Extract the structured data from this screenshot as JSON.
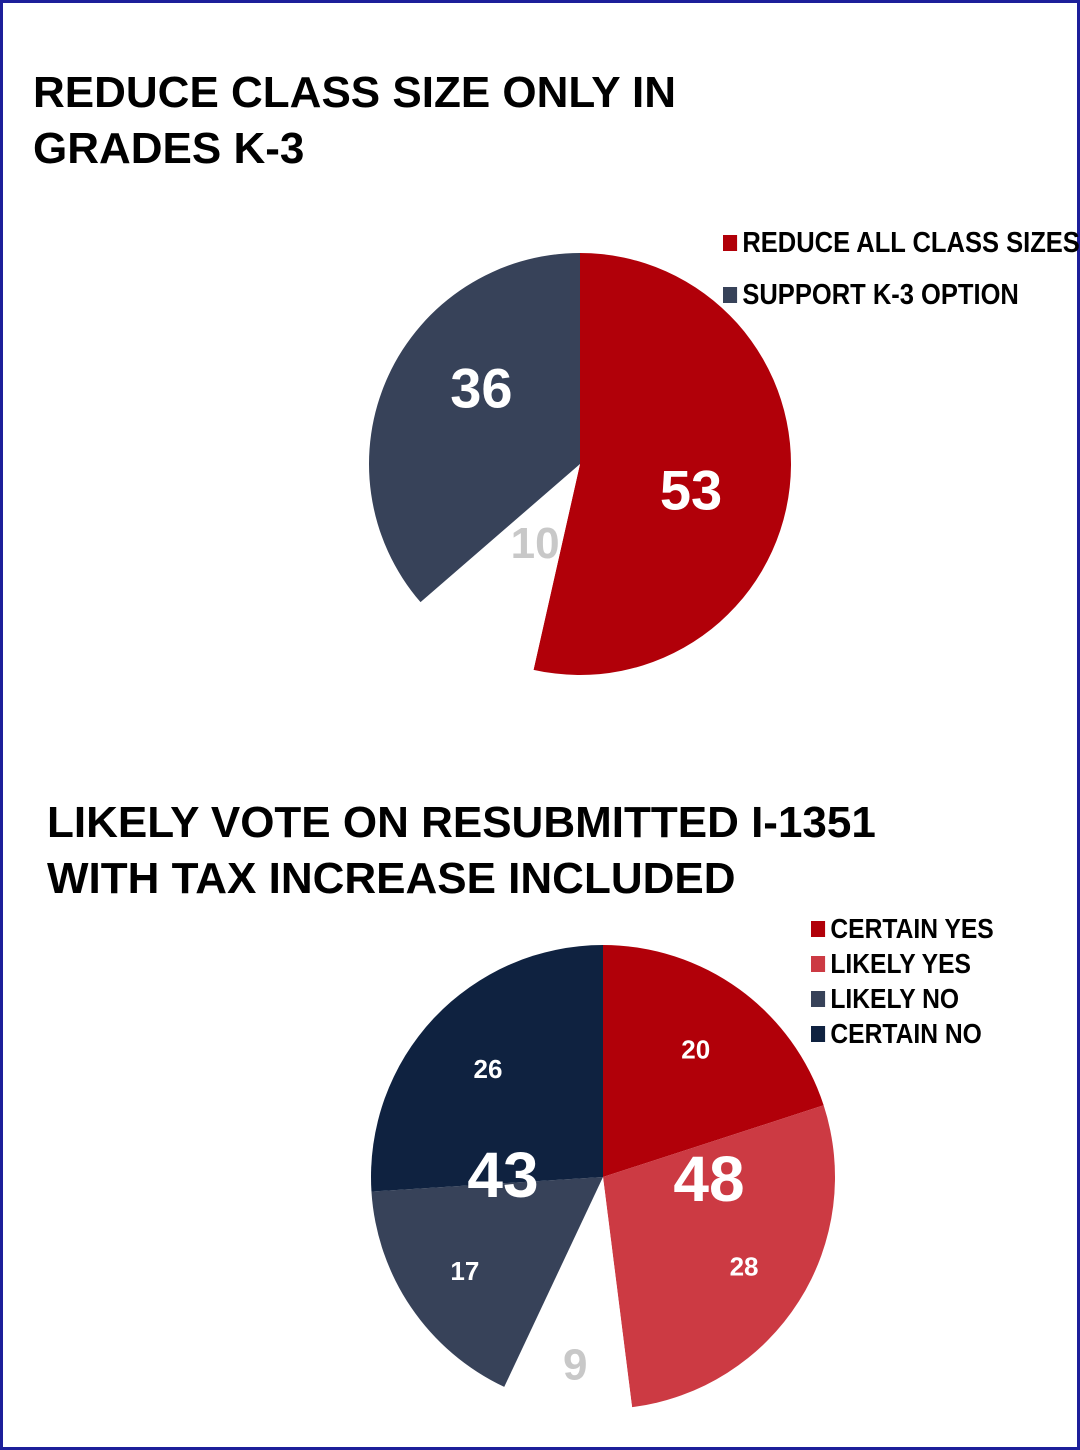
{
  "chart_data": [
    {
      "type": "pie",
      "title_lines": [
        "REDUCE CLASS SIZE ONLY IN",
        "GRADES K-3"
      ],
      "legend_position": "top-right",
      "legend": [
        {
          "label": "REDUCE ALL CLASS SIZES",
          "color": "#b10009"
        },
        {
          "label": "SUPPORT K-3 OPTION",
          "color": "#374259"
        }
      ],
      "slices": [
        {
          "value": 53,
          "color": "#b10009",
          "label": "53"
        },
        {
          "value": 10,
          "color": "#ffffff",
          "label": "10"
        },
        {
          "value": 36,
          "color": "#374259",
          "label": "36"
        }
      ]
    },
    {
      "type": "pie",
      "title_lines": [
        "LIKELY VOTE ON RESUBMITTED I-1351",
        "WITH TAX INCREASE INCLUDED"
      ],
      "legend_position": "top-right",
      "legend": [
        {
          "label": "CERTAIN YES",
          "color": "#b10009"
        },
        {
          "label": "LIKELY YES",
          "color": "#cc3a43"
        },
        {
          "label": "LIKELY NO",
          "color": "#374259"
        },
        {
          "label": "CERTAIN NO",
          "color": "#0f2240"
        }
      ],
      "slices": [
        {
          "value": 20,
          "color": "#b10009",
          "label": "20"
        },
        {
          "value": 28,
          "color": "#cc3a43",
          "label": "28"
        },
        {
          "value": 9,
          "color": "#ffffff",
          "label": "9"
        },
        {
          "value": 17,
          "color": "#374259",
          "label": "17"
        },
        {
          "value": 26,
          "color": "#0f2240",
          "label": "26"
        }
      ],
      "group_totals": [
        {
          "label": "48",
          "value": 48,
          "color": "#ffffff"
        },
        {
          "label": "43",
          "value": 43,
          "color": "#ffffff"
        }
      ]
    }
  ]
}
